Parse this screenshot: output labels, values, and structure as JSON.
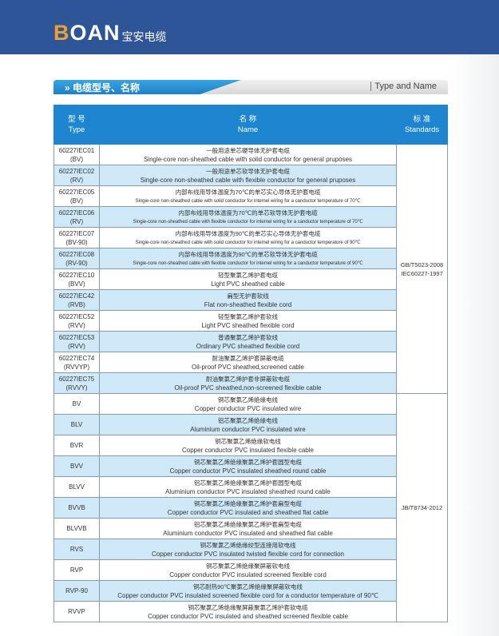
{
  "brand": {
    "logo": "BOAN",
    "name_cn": "宝安电缆",
    "accent": "#f0a030",
    "header_color": "#2e5597"
  },
  "section": {
    "title_cn": "电缆型号、名称",
    "title_en": "Type and Name",
    "icon": "double-chevron-right-icon"
  },
  "table": {
    "headers": [
      {
        "cn": "型 号",
        "en": "Type"
      },
      {
        "cn": "名 称",
        "en": "Name"
      },
      {
        "cn": "标 准",
        "en": "Standards"
      }
    ],
    "groups": [
      {
        "standard": [
          "GB/T5023-2008",
          "IEC60227-1997"
        ],
        "rows": [
          {
            "type": [
              "60227IEC01",
              "(BV)"
            ],
            "cn": "一般用途单芯硬导体无护套电缆",
            "en": "Single-core non-sheathed cable with solid conductor for general pruposes"
          },
          {
            "type": [
              "60227IEC02",
              "(RV)"
            ],
            "cn": "一般用途单芯软导体无护套电缆",
            "en": "Single-core non-sheathed cable with flexible  conductor for general pruposes"
          },
          {
            "type": [
              "60227IEC05",
              "(BV)"
            ],
            "cn": "内部布线用导体温度为70℃的单芯实心导体无护套电缆",
            "en": "Singie-core non-sheathed cable with solid conductor for intemel wiring for a canductor temperature of 70℃",
            "small": true
          },
          {
            "type": [
              "60227IEC06",
              "(RV)"
            ],
            "cn": "内部布线用导体温度为70℃的单芯软导体无护套电缆",
            "en": "Singie-core non-sheathed cable with flexible conductor for intemel wiring for a canductor temperature of 70℃",
            "small": true
          },
          {
            "type": [
              "60227IEC07",
              "(BV-90)"
            ],
            "cn": "内部布线用导体温度为90℃的单芯实心导体无护套电缆",
            "en": "Singie-core non-sheathed cable with solid conductor for intemel wiring for a canductor temperature of 90℃",
            "small": true
          },
          {
            "type": [
              "60227IEC08",
              "(RV-90)"
            ],
            "cn": "内部布线用导体温度为90℃的单芯软导体无护套电缆",
            "en": "Singie-core non-sheathed cable with flexible conductor for intemel wiring for a canductor temperature of 90℃",
            "small": true
          },
          {
            "type": [
              "60227IEC10",
              "(BVV)"
            ],
            "cn": "轻型聚氯乙烯护套电缆",
            "en": "Light PVC sheathed cable"
          },
          {
            "type": [
              "60227IEC42",
              "(RVB)"
            ],
            "cn": "扁型无护套软线",
            "en": "Flat non-sheathed flexible cord"
          },
          {
            "type": [
              "60227IEC52",
              "(RVV)"
            ],
            "cn": "轻型聚氯乙烯护套软线",
            "en": "Light PVC sheathed flexible cord"
          },
          {
            "type": [
              "60227IEC53",
              "(RVV)"
            ],
            "cn": "普通聚氯乙烯护套软线",
            "en": "Ordinary PVC sheathed flexible cord"
          },
          {
            "type": [
              "60227IEC74",
              "(RVVYP)"
            ],
            "cn": "耐油聚氯乙烯护套屏蔽电缆",
            "en": "Oil-proof  PVC sheathed,screened cable"
          },
          {
            "type": [
              "60227IEC75",
              "(RVVY)"
            ],
            "cn": "耐油聚氯乙烯护套非屏蔽软电缆",
            "en": "Oil-proof  PVC sheathed,non-screened flexible cable"
          }
        ]
      },
      {
        "standard": [
          "JB/T8734-2012"
        ],
        "rows": [
          {
            "type": [
              "BV"
            ],
            "cn": "铜芯聚氯乙烯绝缘电线",
            "en": "Copper conductor  PVC insulated wire"
          },
          {
            "type": [
              "BLV"
            ],
            "cn": "铝芯聚氯乙烯绝缘电线",
            "en": "Aluminium conductor  PVC insulated wire"
          },
          {
            "type": [
              "BVR"
            ],
            "cn": "铜芯聚氯乙烯绝缘软电线",
            "en": "Copper conductor  PVC insulated flexible cable"
          },
          {
            "type": [
              "BVV"
            ],
            "cn": "铜芯聚氯乙烯绝缘聚氯乙烯护套圆型电缆",
            "en": "Copper conductor  PVC insulated sheathed round cable"
          },
          {
            "type": [
              "BLVV"
            ],
            "cn": "铝芯聚氯乙烯绝缘聚氯乙烯护套圆型电缆",
            "en": "Aluminium conductor  PVC insulated sheathed round cable"
          },
          {
            "type": [
              "BVVB"
            ],
            "cn": "铜芯聚氯乙烯绝缘聚氯乙烯护套扁型电缆",
            "en": "Copper conductor  PVC insulated and sheathed flat cable"
          },
          {
            "type": [
              "BLVVB"
            ],
            "cn": "铝芯聚氯乙烯绝缘聚氯乙烯护套扁型电缆",
            "en": "Aluminium conductor  PVC insulated and sheathed flat cable"
          },
          {
            "type": [
              "RVS"
            ],
            "cn": "铜芯聚氯乙烯绝缘绞型连接用软电线",
            "en": "Copper conductor  PVC insulated twisted flexible cord for connection"
          },
          {
            "type": [
              "RVP"
            ],
            "cn": "铜芯聚氯乙烯绝缘聚屏蔽软电线",
            "en": "Copper conductor  PVC insulated screened flexible cord"
          },
          {
            "type": [
              "RVP-90"
            ],
            "cn": "铜芯耐热90℃聚氯乙烯绝缘聚屏蔽软电线",
            "en": "Copper conductor  PVC insulated screened flexible cord for a conductor temperature of 90℃"
          },
          {
            "type": [
              "RVVP"
            ],
            "cn": "铜芯聚氯乙烯绝缘聚屏蔽聚氯乙烯护套软电缆",
            "en": "Copper conductor  PVC insulated and sheathed screened flexible cable"
          }
        ]
      }
    ]
  }
}
